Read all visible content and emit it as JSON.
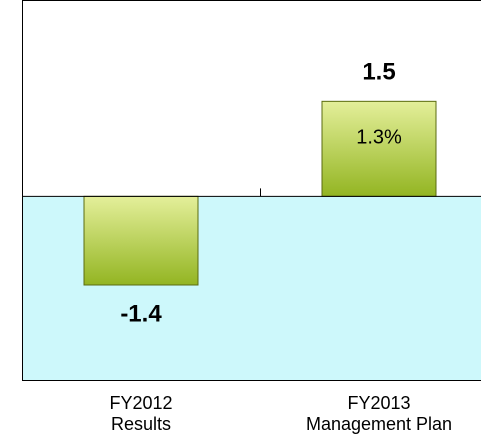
{
  "chart_data": {
    "type": "bar",
    "categories": [
      "FY2012\nResults",
      "FY2013\nManagement Plan"
    ],
    "values": [
      -1.4,
      1.5
    ],
    "value_labels": [
      "-1.4",
      "1.5"
    ],
    "color": "#b3cc3c",
    "annotations": [
      {
        "text": "1.3%"
      }
    ],
    "ylim": [
      -2.9,
      3.1
    ],
    "negative_background": "#cdf8fb"
  }
}
